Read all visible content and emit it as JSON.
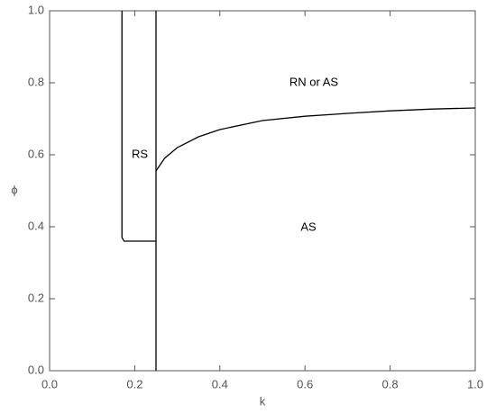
{
  "chart_data": {
    "type": "line",
    "xlabel": "k",
    "ylabel": "ϕ",
    "xlim": [
      0,
      1
    ],
    "ylim": [
      0,
      1
    ],
    "xticks": [
      {
        "value": 0,
        "label": "0.0"
      },
      0.2,
      0.4,
      0.6,
      0.8,
      {
        "value": 1,
        "label": "1.0"
      }
    ],
    "yticks": [
      {
        "value": 0,
        "label": "0.0"
      },
      0.2,
      0.4,
      0.6,
      0.8,
      {
        "value": 1,
        "label": "1.0"
      }
    ],
    "series": [
      {
        "color": "#000000",
        "x": [
          0.17,
          0.17,
          0.175,
          0.25
        ],
        "values": [
          1.0,
          0.37,
          0.36,
          0.36
        ]
      },
      {
        "color": "#000000",
        "x": [
          0.25,
          0.25
        ],
        "values": [
          1.0,
          0.0
        ]
      },
      {
        "color": "#000000",
        "x": [
          0.25,
          0.27,
          0.3,
          0.35,
          0.4,
          0.5,
          0.6,
          0.7,
          0.8,
          0.9,
          1.0
        ],
        "values": [
          0.555,
          0.59,
          0.62,
          0.65,
          0.67,
          0.695,
          0.707,
          0.715,
          0.722,
          0.727,
          0.73
        ]
      }
    ],
    "annotations": [
      "RS",
      "RN or AS",
      "AS"
    ]
  }
}
